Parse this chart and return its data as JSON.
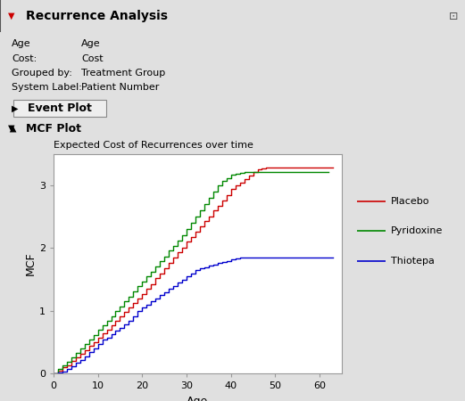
{
  "title_main": "Recurrence Analysis",
  "meta_lines": [
    [
      "Age",
      "Age"
    ],
    [
      "Cost:",
      "Cost"
    ],
    [
      "Grouped by:",
      "Treatment Group"
    ],
    [
      "System Label:",
      "Patient Number"
    ]
  ],
  "event_plot_label": "Event Plot",
  "mcf_plot_label": "MCF Plot",
  "subtitle": "Expected Cost of Recurrences over time",
  "xlabel": "Age",
  "ylabel": "MCF",
  "xlim": [
    0,
    65
  ],
  "ylim": [
    0,
    3.5
  ],
  "yticks": [
    0,
    1,
    2,
    3
  ],
  "xticks": [
    0,
    10,
    20,
    30,
    40,
    50,
    60
  ],
  "legend_entries": [
    "Placebo",
    "Pyridoxine",
    "Thiotepa"
  ],
  "line_colors": [
    "#cc0000",
    "#008800",
    "#0000cc"
  ],
  "bg_color": "#e0e0e0",
  "header_bg": "#c8c8c8",
  "section_bg": "#d4d4d4",
  "plot_bg": "#ffffff",
  "placebo_x": [
    0,
    1,
    2,
    3,
    4,
    5,
    6,
    7,
    8,
    9,
    10,
    11,
    12,
    13,
    14,
    15,
    16,
    17,
    18,
    19,
    20,
    21,
    22,
    23,
    24,
    25,
    26,
    27,
    28,
    29,
    30,
    31,
    32,
    33,
    34,
    35,
    36,
    37,
    38,
    39,
    40,
    41,
    42,
    43,
    44,
    45,
    46,
    47,
    48,
    49,
    50,
    51,
    52,
    63
  ],
  "placebo_y": [
    0,
    0.05,
    0.1,
    0.14,
    0.2,
    0.26,
    0.32,
    0.38,
    0.44,
    0.5,
    0.57,
    0.64,
    0.7,
    0.77,
    0.84,
    0.91,
    0.98,
    1.05,
    1.12,
    1.2,
    1.27,
    1.35,
    1.43,
    1.52,
    1.6,
    1.68,
    1.76,
    1.85,
    1.93,
    2.01,
    2.1,
    2.18,
    2.26,
    2.35,
    2.43,
    2.51,
    2.6,
    2.68,
    2.76,
    2.85,
    2.95,
    3.0,
    3.05,
    3.1,
    3.16,
    3.22,
    3.25,
    3.27,
    3.28,
    3.28,
    3.28,
    3.28,
    3.28,
    3.28
  ],
  "pyridoxine_x": [
    0,
    1,
    2,
    3,
    4,
    5,
    6,
    7,
    8,
    9,
    10,
    11,
    12,
    13,
    14,
    15,
    16,
    17,
    18,
    19,
    20,
    21,
    22,
    23,
    24,
    25,
    26,
    27,
    28,
    29,
    30,
    31,
    32,
    33,
    34,
    35,
    36,
    37,
    38,
    39,
    40,
    41,
    42,
    43,
    44,
    45,
    46,
    62
  ],
  "pyridoxine_y": [
    0,
    0.07,
    0.13,
    0.19,
    0.26,
    0.33,
    0.4,
    0.47,
    0.54,
    0.62,
    0.7,
    0.77,
    0.84,
    0.92,
    1.0,
    1.07,
    1.15,
    1.23,
    1.31,
    1.39,
    1.47,
    1.55,
    1.63,
    1.71,
    1.79,
    1.87,
    1.96,
    2.04,
    2.12,
    2.2,
    2.3,
    2.4,
    2.5,
    2.6,
    2.7,
    2.8,
    2.9,
    3.0,
    3.07,
    3.12,
    3.17,
    3.19,
    3.2,
    3.22,
    3.22,
    3.22,
    3.22,
    3.22
  ],
  "thiotepa_x": [
    0,
    1,
    2,
    3,
    4,
    5,
    6,
    7,
    8,
    9,
    10,
    11,
    12,
    13,
    14,
    15,
    16,
    17,
    18,
    19,
    20,
    21,
    22,
    23,
    24,
    25,
    26,
    27,
    28,
    29,
    30,
    31,
    32,
    33,
    34,
    35,
    36,
    37,
    38,
    39,
    40,
    41,
    42,
    43,
    44,
    45,
    46,
    47,
    48,
    49,
    50,
    63
  ],
  "thiotepa_y": [
    0,
    0.02,
    0.04,
    0.08,
    0.12,
    0.17,
    0.22,
    0.28,
    0.34,
    0.4,
    0.47,
    0.54,
    0.58,
    0.63,
    0.68,
    0.73,
    0.78,
    0.85,
    0.92,
    1.0,
    1.05,
    1.1,
    1.16,
    1.2,
    1.25,
    1.3,
    1.35,
    1.4,
    1.45,
    1.5,
    1.55,
    1.6,
    1.65,
    1.68,
    1.7,
    1.72,
    1.74,
    1.76,
    1.78,
    1.8,
    1.82,
    1.84,
    1.85,
    1.85,
    1.85,
    1.85,
    1.85,
    1.85,
    1.85,
    1.85,
    1.85,
    1.85
  ]
}
